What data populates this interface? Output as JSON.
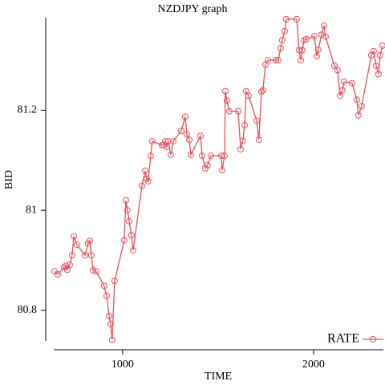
{
  "chart_data": {
    "type": "line",
    "title": "NZDJPY graph",
    "xlabel": "TIME",
    "ylabel": "BID",
    "xlim": [
      639,
      2366
    ],
    "ylim": [
      80.739,
      81.385
    ],
    "xticks": [
      1000,
      2000
    ],
    "yticks": [
      80.8,
      81,
      81.2
    ],
    "legend": "lower right",
    "x": [
      643,
      660,
      693,
      702,
      710,
      723,
      735,
      744,
      760,
      803,
      819,
      828,
      836,
      845,
      861,
      903,
      916,
      929,
      937,
      945,
      958,
      1008,
      1017,
      1025,
      1034,
      1046,
      1055,
      1101,
      1118,
      1126,
      1134,
      1147,
      1155,
      1206,
      1214,
      1223,
      1231,
      1239,
      1252,
      1265,
      1307,
      1328,
      1336,
      1349,
      1357,
      1408,
      1416,
      1433,
      1445,
      1462,
      1517,
      1521,
      1534,
      1538,
      1546,
      1559,
      1605,
      1618,
      1630,
      1639,
      1647,
      1660,
      1702,
      1714,
      1727,
      1735,
      1748,
      1761,
      1803,
      1815,
      1828,
      1836,
      1849,
      1857,
      1912,
      1924,
      1933,
      1941,
      1950,
      1962,
      2004,
      2017,
      2025,
      2042,
      2055,
      2063,
      2109,
      2126,
      2139,
      2151,
      2160,
      2202,
      2227,
      2235,
      2252,
      2303,
      2315,
      2328,
      2340,
      2349,
      2361
    ],
    "series": [
      {
        "name": "RATE",
        "color": "#e8505b",
        "values": [
          80.878,
          80.872,
          80.886,
          80.889,
          80.881,
          80.891,
          80.91,
          80.948,
          80.931,
          80.91,
          80.934,
          80.939,
          80.91,
          80.88,
          80.878,
          80.849,
          80.829,
          80.789,
          80.773,
          80.741,
          80.859,
          80.94,
          81.02,
          81.0,
          80.978,
          80.95,
          80.92,
          81.049,
          81.079,
          81.063,
          81.058,
          81.109,
          81.138,
          81.13,
          81.131,
          81.138,
          81.127,
          81.138,
          81.111,
          81.138,
          81.159,
          81.187,
          81.152,
          81.141,
          81.111,
          81.149,
          81.109,
          81.084,
          81.09,
          81.109,
          81.109,
          81.08,
          81.109,
          81.238,
          81.219,
          81.198,
          81.198,
          81.122,
          81.139,
          81.17,
          81.238,
          81.229,
          81.179,
          81.141,
          81.237,
          81.24,
          81.291,
          81.3,
          81.3,
          81.3,
          81.324,
          81.34,
          81.358,
          81.382,
          81.382,
          81.32,
          81.3,
          81.32,
          81.34,
          81.342,
          81.348,
          81.308,
          81.321,
          81.351,
          81.369,
          81.347,
          81.289,
          81.28,
          81.229,
          81.24,
          81.257,
          81.254,
          81.221,
          81.19,
          81.208,
          81.31,
          81.318,
          81.289,
          81.272,
          81.31,
          81.329
        ]
      }
    ]
  }
}
